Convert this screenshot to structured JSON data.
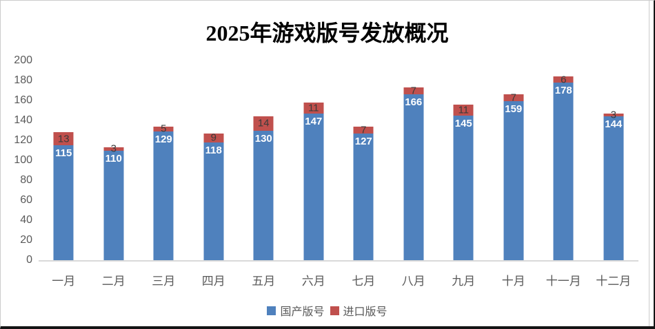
{
  "chart_data": {
    "type": "bar",
    "stacked": true,
    "title": "2025年游戏版号发放概况",
    "categories": [
      "一月",
      "二月",
      "三月",
      "四月",
      "五月",
      "六月",
      "七月",
      "八月",
      "九月",
      "十月",
      "十一月",
      "十二月"
    ],
    "series": [
      {
        "name": "国产版号",
        "slug": "domestic",
        "color": "#4F81BD",
        "label_color": "#FFFFFF",
        "values": [
          115,
          110,
          129,
          118,
          130,
          147,
          127,
          166,
          145,
          159,
          178,
          144
        ]
      },
      {
        "name": "进口版号",
        "slug": "imported",
        "color": "#C0504D",
        "label_color": "#3A3A3A",
        "values": [
          13,
          3,
          5,
          9,
          14,
          11,
          7,
          7,
          11,
          7,
          6,
          3
        ]
      }
    ],
    "ylim": [
      0,
      200
    ],
    "yticks": [
      0,
      20,
      40,
      60,
      80,
      100,
      120,
      140,
      160,
      180,
      200
    ],
    "grid": false,
    "legend_position": "bottom"
  },
  "colors": {
    "axis_text": "#595959",
    "baseline": "#D9D9D9",
    "background": "#FFFFFF",
    "chart_border": "#CBCBCB",
    "outer_edge": "#141414"
  }
}
